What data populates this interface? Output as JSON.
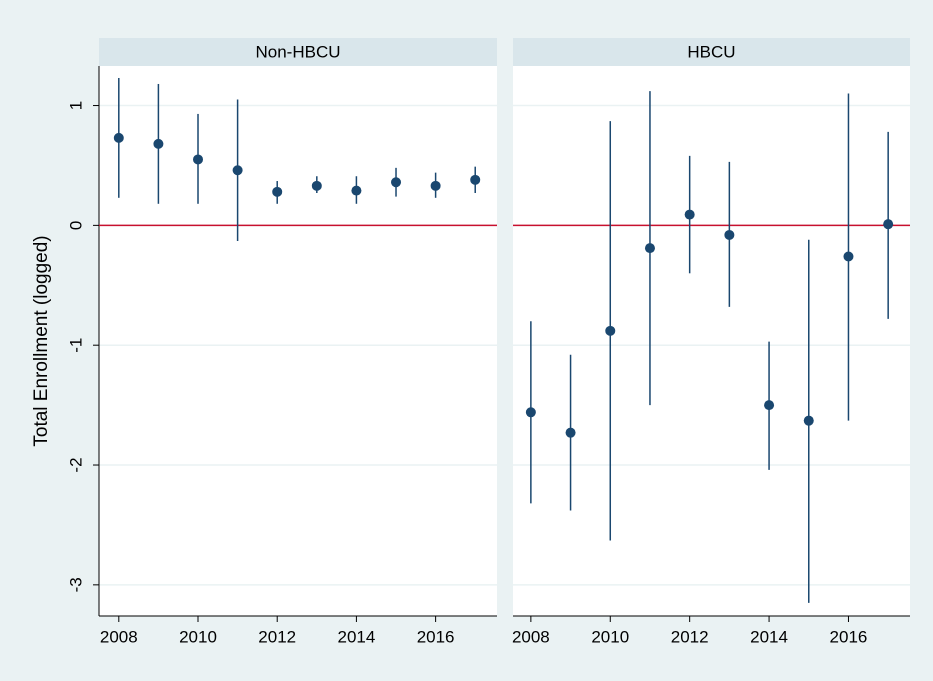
{
  "chart_data": [
    {
      "type": "errorbar",
      "title": "Non-HBCU",
      "ylabel": "Total Enrollment (logged)",
      "x": [
        2008,
        2009,
        2010,
        2011,
        2012,
        2013,
        2014,
        2015,
        2016,
        2017
      ],
      "values": [
        0.73,
        0.68,
        0.55,
        0.46,
        0.28,
        0.33,
        0.29,
        0.36,
        0.33,
        0.38
      ],
      "ci_low": [
        0.23,
        0.18,
        0.18,
        -0.13,
        0.18,
        0.27,
        0.18,
        0.24,
        0.23,
        0.27
      ],
      "ci_high": [
        1.23,
        1.18,
        0.93,
        1.05,
        0.37,
        0.41,
        0.41,
        0.48,
        0.44,
        0.49
      ],
      "color": "#1a476f",
      "hline": 0,
      "hline_color": "#c8102e",
      "xlim": [
        2007.5,
        2017.55
      ],
      "xticks": [
        2008,
        2010,
        2012,
        2014,
        2016
      ],
      "ylim": [
        -3.26,
        1.33
      ],
      "yticks": [
        -3,
        -2,
        -1,
        0,
        1
      ],
      "grid": true
    },
    {
      "type": "errorbar",
      "title": "HBCU",
      "x": [
        2008,
        2009,
        2010,
        2011,
        2012,
        2013,
        2014,
        2015,
        2016,
        2017
      ],
      "values": [
        -1.56,
        -1.73,
        -0.88,
        -0.19,
        0.09,
        -0.08,
        -1.5,
        -1.63,
        -0.26,
        0.01
      ],
      "ci_low": [
        -2.32,
        -2.38,
        -2.63,
        -1.5,
        -0.4,
        -0.68,
        -2.04,
        -3.15,
        -1.63,
        -0.78
      ],
      "ci_high": [
        -0.8,
        -1.08,
        0.87,
        1.12,
        0.58,
        0.53,
        -0.97,
        -0.12,
        1.1,
        0.78
      ],
      "color": "#1a476f",
      "hline": 0,
      "hline_color": "#c8102e",
      "xlim": [
        2007.55,
        2017.55
      ],
      "xticks": [
        2008,
        2010,
        2012,
        2014,
        2016
      ],
      "ylim": [
        -3.26,
        1.33
      ],
      "grid": true
    }
  ]
}
